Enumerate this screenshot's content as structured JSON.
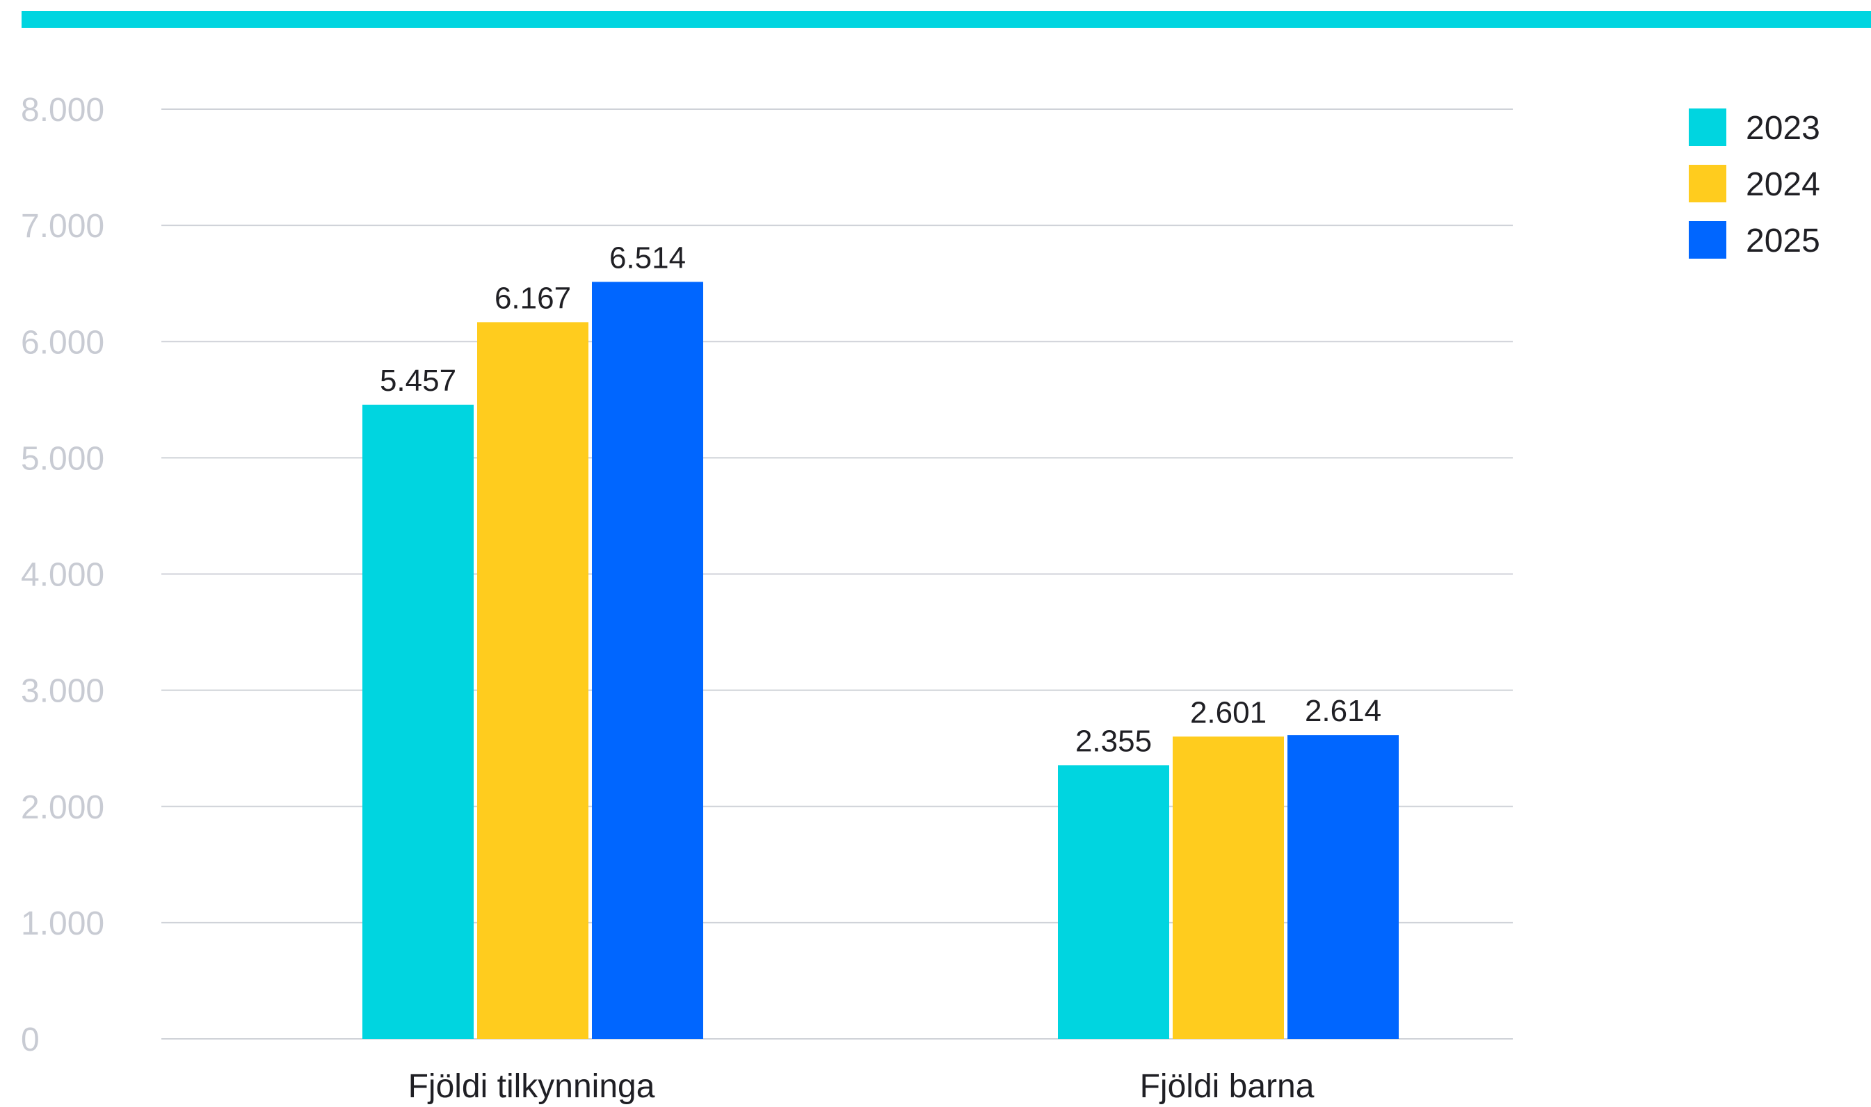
{
  "colors": {
    "top_bar": "#00d5e0",
    "grid": "#cfd2d8",
    "tick_text": "#c8cbd3",
    "label_text": "#1f1f24"
  },
  "chart_data": {
    "type": "bar",
    "title": "",
    "xlabel": "",
    "ylabel": "",
    "categories": [
      "Fjöldi tilkynninga",
      "Fjöldi barna"
    ],
    "series": [
      {
        "name": "2023",
        "color": "#00d5e0",
        "values": [
          5457,
          2355
        ],
        "labels": [
          "5.457",
          "2.355"
        ]
      },
      {
        "name": "2024",
        "color": "#ffcc1e",
        "values": [
          6167,
          2601
        ],
        "labels": [
          "6.167",
          "2.601"
        ]
      },
      {
        "name": "2025",
        "color": "#0066ff",
        "values": [
          6514,
          2614
        ],
        "labels": [
          "6.514",
          "2.614"
        ]
      }
    ],
    "ylim": [
      0,
      8000
    ],
    "yticks": [
      0,
      1000,
      2000,
      3000,
      4000,
      5000,
      6000,
      7000,
      8000
    ],
    "ytick_labels": [
      "0",
      "1.000",
      "2.000",
      "3.000",
      "4.000",
      "5.000",
      "6.000",
      "7.000",
      "8.000"
    ],
    "grid": true,
    "legend_position": "top-right"
  }
}
